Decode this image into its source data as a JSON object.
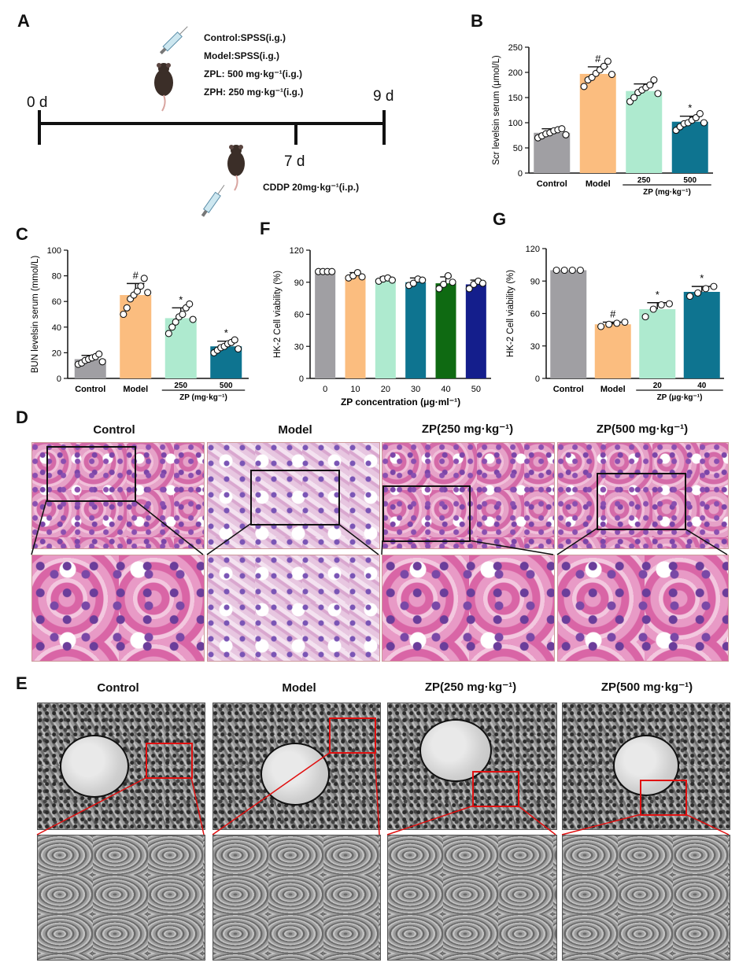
{
  "panels": {
    "A": "A",
    "B": "B",
    "C": "C",
    "D": "D",
    "E": "E",
    "F": "F",
    "G": "G"
  },
  "timeline": {
    "day0": "0 d",
    "day7": "7 d",
    "day9": "9 d",
    "treatments": [
      "Control:SPSS(i.g.)",
      "Model:SPSS(i.g.)",
      "ZPL: 500 mg·kg⁻¹(i.g.)",
      "ZPH: 250 mg·kg⁻¹(i.g.)"
    ],
    "injection": "CDDP 20mg·kg⁻¹(i.p.)",
    "icons": [
      "mouse-icon",
      "syringe-icon"
    ]
  },
  "colors": {
    "control": "#a09fa3",
    "model": "#fbbd7f",
    "low": "#aeeacf",
    "high": "#0e7490",
    "dose40": "#0f6a12",
    "dose50": "#141e8c"
  },
  "chart_data": [
    {
      "id": "B",
      "type": "bar",
      "ylabel": "Scr levelsin serum (μmol/L)",
      "ylim": [
        0,
        250
      ],
      "yticks": [
        "0",
        "50",
        "100",
        "150",
        "200",
        "250"
      ],
      "categories": [
        "Control",
        "Model",
        "250",
        "500"
      ],
      "group_label": "ZP (mg·kg⁻¹)",
      "values": [
        80,
        197,
        163,
        102
      ],
      "errors": [
        8,
        14,
        14,
        11
      ],
      "marks": [
        "",
        "#",
        "",
        "*"
      ],
      "points": [
        [
          70,
          74,
          78,
          80,
          84,
          86,
          88,
          76
        ],
        [
          172,
          185,
          190,
          198,
          205,
          212,
          222,
          196
        ],
        [
          142,
          150,
          160,
          165,
          170,
          175,
          185,
          158
        ],
        [
          85,
          92,
          98,
          100,
          105,
          110,
          118,
          100
        ]
      ]
    },
    {
      "id": "C",
      "type": "bar",
      "ylabel": "BUN levelsin serum (mmol/L)",
      "ylim": [
        0,
        100
      ],
      "yticks": [
        "0",
        "20",
        "40",
        "60",
        "80",
        "100"
      ],
      "categories": [
        "Control",
        "Model",
        "250",
        "500"
      ],
      "group_label": "ZP (mg·kg⁻¹)",
      "values": [
        15,
        65,
        47,
        25
      ],
      "errors": [
        3,
        9,
        8,
        4
      ],
      "marks": [
        "",
        "#",
        "*",
        "*"
      ],
      "points": [
        [
          11,
          12,
          14,
          15,
          16,
          17,
          19,
          13
        ],
        [
          50,
          55,
          62,
          65,
          68,
          72,
          78,
          67
        ],
        [
          35,
          40,
          44,
          48,
          50,
          55,
          58,
          46
        ],
        [
          20,
          22,
          24,
          25,
          27,
          28,
          30,
          23
        ]
      ]
    },
    {
      "id": "F",
      "type": "bar",
      "ylabel": "HK-2 Cell viability (%)",
      "xlabel": "ZP concentration (μg·ml⁻¹)",
      "ylim": [
        0,
        120
      ],
      "yticks": [
        "0",
        "30",
        "60",
        "90",
        "120"
      ],
      "categories": [
        "0",
        "10",
        "20",
        "30",
        "40",
        "50"
      ],
      "values": [
        100,
        96,
        93,
        90,
        89,
        88
      ],
      "errors": [
        1,
        3,
        2,
        4,
        6,
        4
      ],
      "marks": [
        "",
        "",
        "",
        "",
        "",
        ""
      ],
      "points": [
        [
          100,
          100,
          100,
          100
        ],
        [
          94,
          96,
          99,
          95
        ],
        [
          91,
          93,
          94,
          92
        ],
        [
          87,
          89,
          93,
          92
        ],
        [
          84,
          88,
          96,
          90
        ],
        [
          84,
          88,
          91,
          89
        ]
      ]
    },
    {
      "id": "G",
      "type": "bar",
      "ylabel": "HK-2 Cell viability (%)",
      "ylim": [
        0,
        120
      ],
      "yticks": [
        "0",
        "30",
        "60",
        "90",
        "120"
      ],
      "categories": [
        "Control",
        "Model",
        "20",
        "40"
      ],
      "group_label": "ZP (μg·kg⁻¹)",
      "values": [
        100,
        50,
        64,
        80
      ],
      "errors": [
        0,
        2,
        6,
        5
      ],
      "marks": [
        "",
        "#",
        "*",
        "*"
      ],
      "points": [
        [
          100,
          100,
          100,
          100
        ],
        [
          48,
          50,
          51,
          52
        ],
        [
          57,
          64,
          68,
          69
        ],
        [
          76,
          79,
          83,
          85
        ]
      ]
    }
  ],
  "histology": {
    "headers": [
      "Control",
      "Model",
      "ZP(250 mg·kg⁻¹)",
      "ZP(500 mg·kg⁻¹)"
    ]
  },
  "tem": {
    "headers": [
      "Control",
      "Model",
      "ZP(250 mg·kg⁻¹)",
      "ZP(500 mg·kg⁻¹)"
    ]
  }
}
